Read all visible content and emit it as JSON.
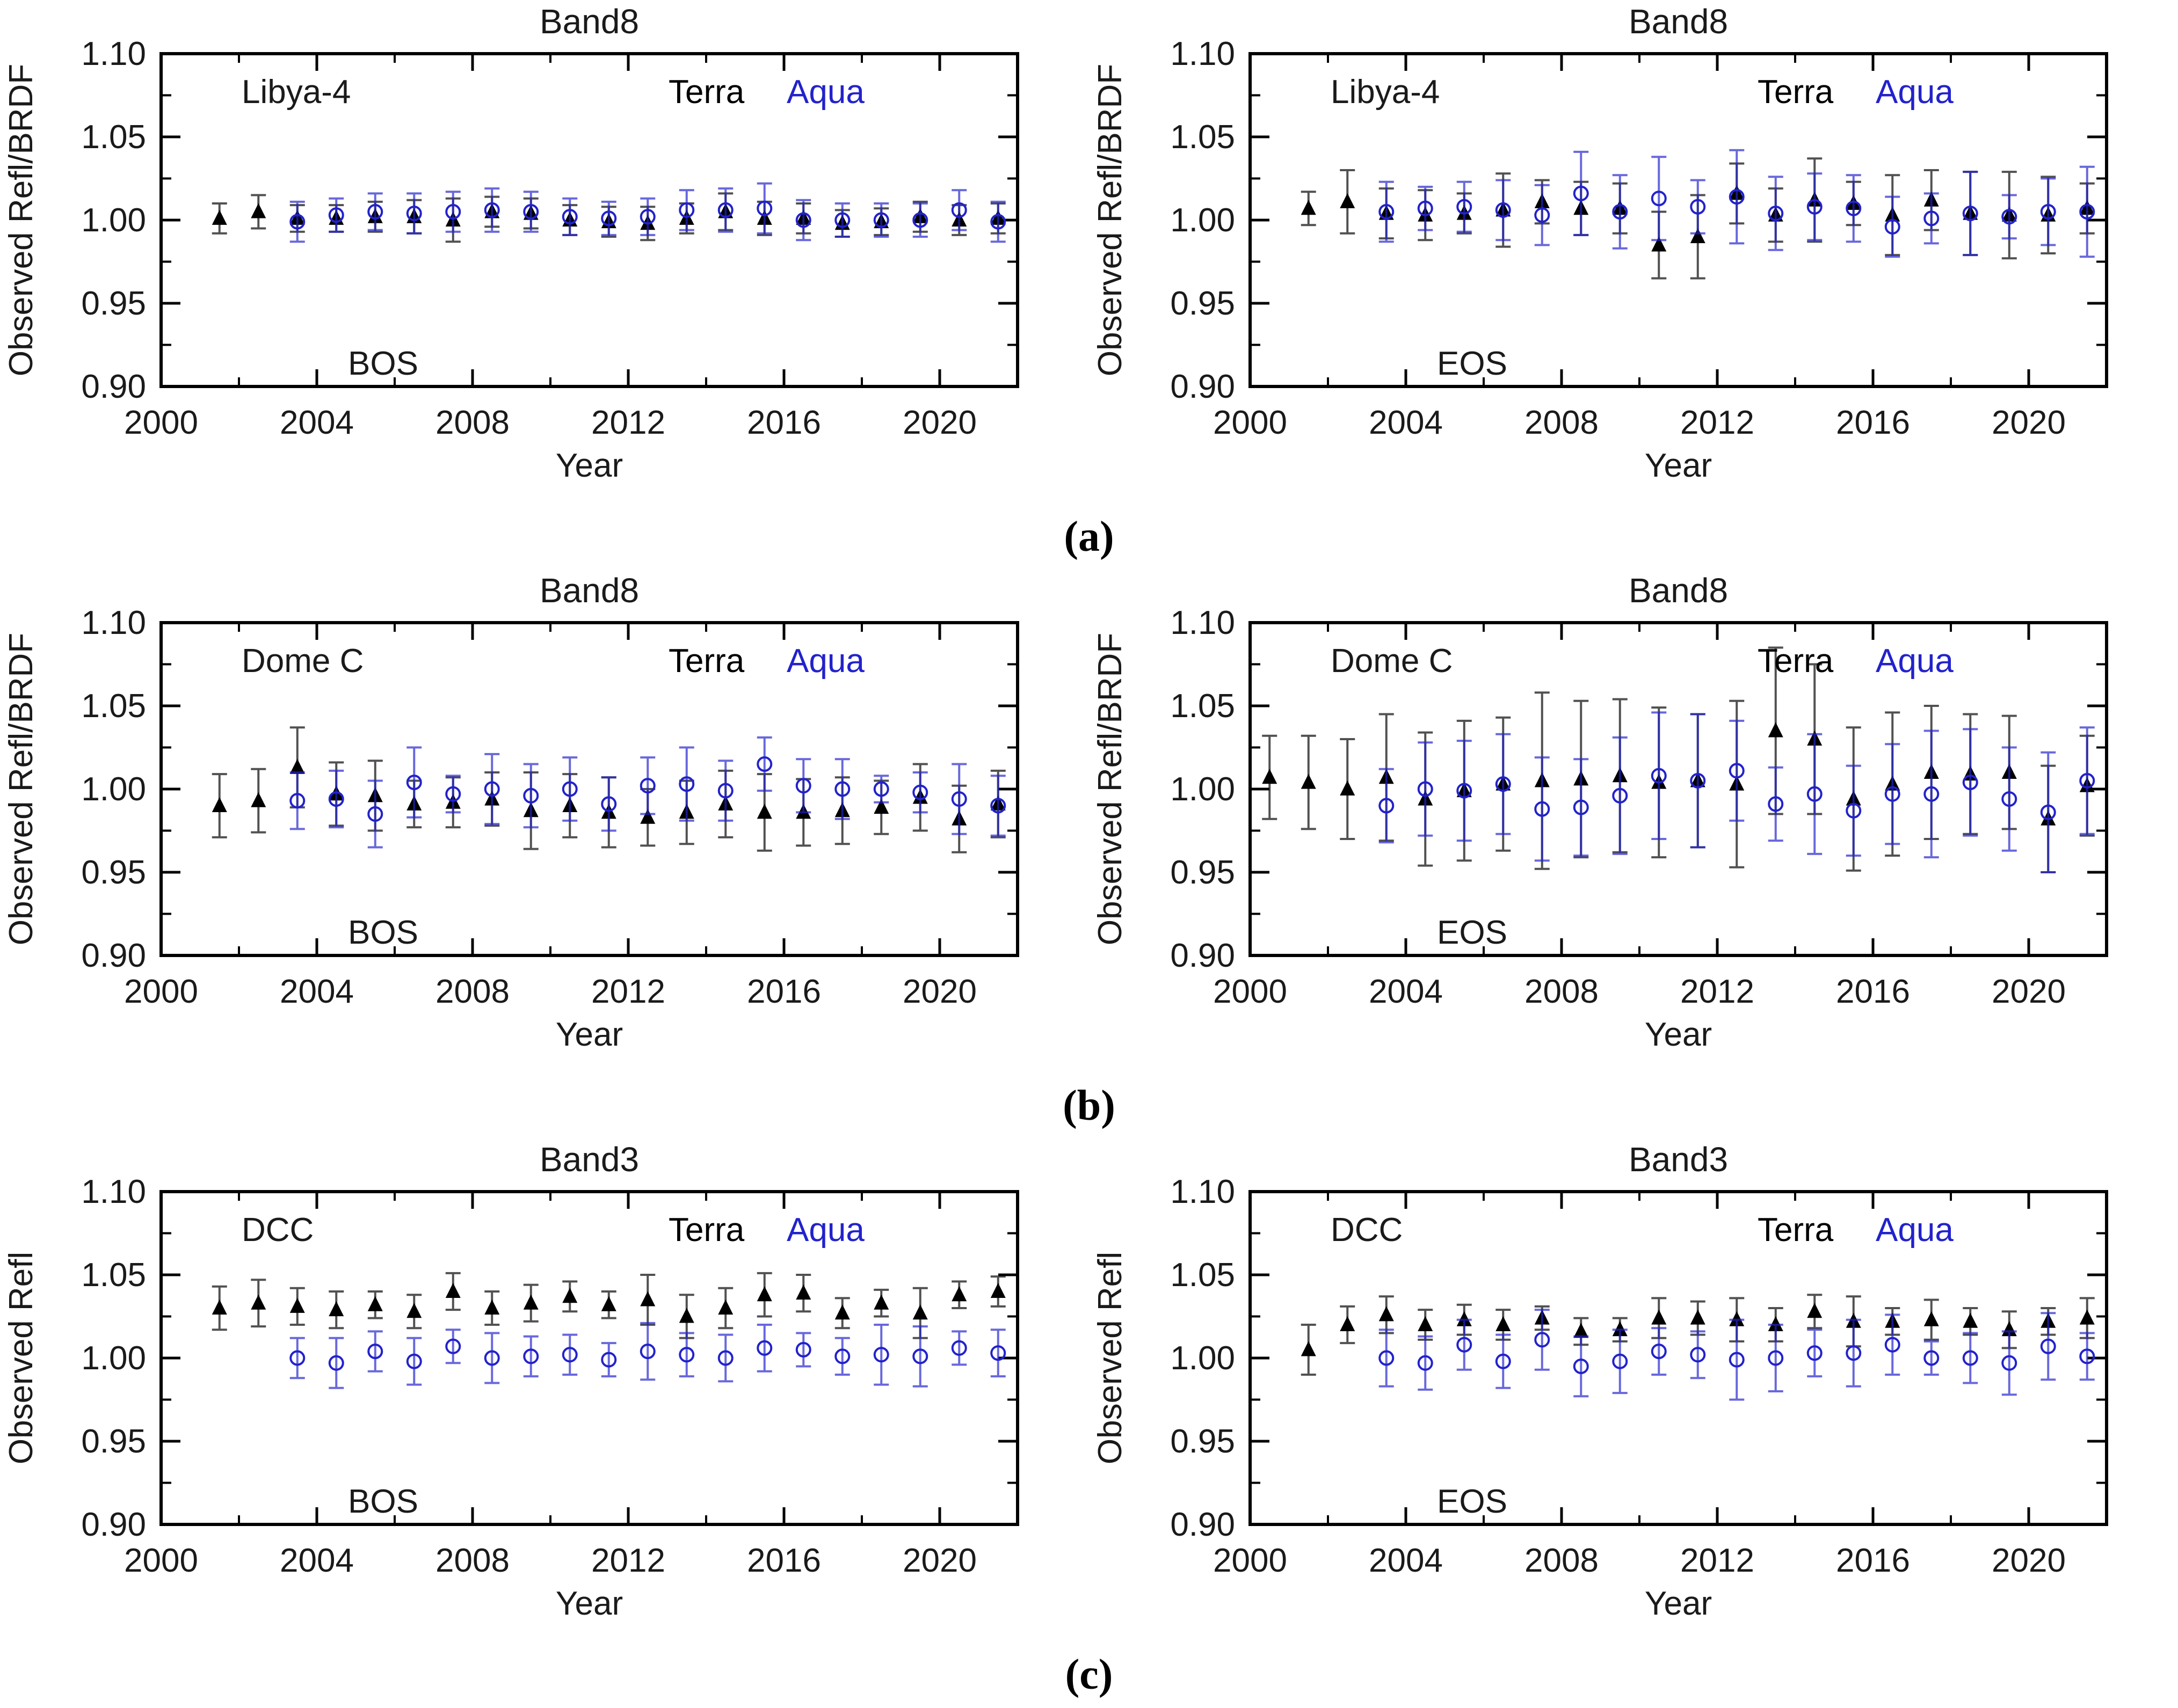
{
  "figure": {
    "background": "#ffffff",
    "letters": [
      "(a)",
      "(b)",
      "(c)"
    ],
    "colors": {
      "terra": "#000000",
      "aqua": "#2222cc",
      "frame": "#000000"
    },
    "legend": {
      "terra": "Terra",
      "aqua": "Aqua"
    },
    "axes": {
      "xlabel": "Year",
      "xlim": [
        2000,
        2022
      ],
      "xticks": [
        2000,
        2004,
        2008,
        2012,
        2016,
        2020
      ],
      "x_minor_step": 2,
      "ylim": [
        0.9,
        1.1
      ],
      "yticks": [
        0.9,
        0.95,
        1.0,
        1.05,
        1.1
      ],
      "y_minor_step": 0.025
    }
  },
  "chart_data": [
    {
      "type": "scatter",
      "title": "Band8",
      "site": "Libya-4",
      "mode": "BOS",
      "ylabel": "Observed Refl/BRDF",
      "xlabel": "Year",
      "series": [
        {
          "name": "Terra",
          "marker": "filled-triangle",
          "color": "#000000",
          "x": [
            2001.5,
            2002.5,
            2003.5,
            2004.5,
            2005.5,
            2006.5,
            2007.5,
            2008.5,
            2009.5,
            2010.5,
            2011.5,
            2012.5,
            2013.5,
            2014.5,
            2015.5,
            2016.5,
            2017.5,
            2018.5,
            2019.5,
            2020.5,
            2021.5
          ],
          "y": [
            1.001,
            1.005,
            1.001,
            1.001,
            1.002,
            1.002,
            1.0,
            1.005,
            1.004,
            1.0,
            0.999,
            0.998,
            1.001,
            1.005,
            1.001,
            1.001,
            0.998,
            0.999,
            1.002,
            1.0,
            1.001
          ],
          "yerr": [
            0.009,
            0.01,
            0.008,
            0.008,
            0.009,
            0.01,
            0.013,
            0.009,
            0.009,
            0.009,
            0.009,
            0.01,
            0.009,
            0.011,
            0.01,
            0.009,
            0.008,
            0.008,
            0.009,
            0.009,
            0.009
          ]
        },
        {
          "name": "Aqua",
          "marker": "open-circle",
          "color": "#2222cc",
          "x": [
            2003.5,
            2004.5,
            2005.5,
            2006.5,
            2007.5,
            2008.5,
            2009.5,
            2010.5,
            2011.5,
            2012.5,
            2013.5,
            2014.5,
            2015.5,
            2016.5,
            2017.5,
            2018.5,
            2019.5,
            2020.5,
            2021.5
          ],
          "y": [
            0.999,
            1.003,
            1.005,
            1.004,
            1.005,
            1.006,
            1.005,
            1.002,
            1.001,
            1.002,
            1.006,
            1.006,
            1.007,
            1.0,
            1.0,
            1.0,
            1.0,
            1.006,
            0.999
          ],
          "yerr": [
            0.012,
            0.01,
            0.011,
            0.012,
            0.012,
            0.013,
            0.012,
            0.011,
            0.01,
            0.011,
            0.012,
            0.013,
            0.015,
            0.012,
            0.01,
            0.01,
            0.01,
            0.012,
            0.012
          ]
        }
      ]
    },
    {
      "type": "scatter",
      "title": "Band8",
      "site": "Libya-4",
      "mode": "EOS",
      "ylabel": "Observed Refl/BRDF",
      "xlabel": "Year",
      "series": [
        {
          "name": "Terra",
          "marker": "filled-triangle",
          "color": "#000000",
          "x": [
            2001.5,
            2002.5,
            2003.5,
            2004.5,
            2005.5,
            2006.5,
            2007.5,
            2008.5,
            2009.5,
            2010.5,
            2011.5,
            2012.5,
            2013.5,
            2014.5,
            2015.5,
            2016.5,
            2017.5,
            2018.5,
            2019.5,
            2020.5,
            2021.5
          ],
          "y": [
            1.007,
            1.011,
            1.004,
            1.003,
            1.004,
            1.006,
            1.011,
            1.007,
            1.007,
            0.985,
            0.99,
            1.016,
            1.003,
            1.012,
            1.01,
            1.003,
            1.012,
            1.004,
            1.003,
            1.003,
            1.007
          ],
          "yerr": [
            0.01,
            0.019,
            0.015,
            0.015,
            0.012,
            0.022,
            0.013,
            0.016,
            0.015,
            0.02,
            0.025,
            0.018,
            0.016,
            0.025,
            0.013,
            0.024,
            0.018,
            0.025,
            0.026,
            0.023,
            0.015
          ]
        },
        {
          "name": "Aqua",
          "marker": "open-circle",
          "color": "#2222cc",
          "x": [
            2003.5,
            2004.5,
            2005.5,
            2006.5,
            2007.5,
            2008.5,
            2009.5,
            2010.5,
            2011.5,
            2012.5,
            2013.5,
            2014.5,
            2015.5,
            2016.5,
            2017.5,
            2018.5,
            2019.5,
            2020.5,
            2021.5
          ],
          "y": [
            1.005,
            1.007,
            1.008,
            1.006,
            1.003,
            1.016,
            1.005,
            1.013,
            1.008,
            1.014,
            1.004,
            1.008,
            1.007,
            0.996,
            1.001,
            1.004,
            1.002,
            1.005,
            1.005
          ],
          "yerr": [
            0.018,
            0.013,
            0.015,
            0.018,
            0.018,
            0.025,
            0.022,
            0.025,
            0.016,
            0.028,
            0.022,
            0.02,
            0.02,
            0.018,
            0.015,
            0.025,
            0.013,
            0.02,
            0.027
          ]
        }
      ]
    },
    {
      "type": "scatter",
      "title": "Band8",
      "site": "Dome C",
      "mode": "BOS",
      "ylabel": "Observed Refl/BRDF",
      "xlabel": "Year",
      "series": [
        {
          "name": "Terra",
          "marker": "filled-triangle",
          "color": "#000000",
          "x": [
            2001.5,
            2002.5,
            2003.5,
            2004.5,
            2005.5,
            2006.5,
            2007.5,
            2008.5,
            2009.5,
            2010.5,
            2011.5,
            2012.5,
            2013.5,
            2014.5,
            2015.5,
            2016.5,
            2017.5,
            2018.5,
            2019.5,
            2020.5,
            2021.5
          ],
          "y": [
            0.99,
            0.993,
            1.013,
            0.997,
            0.996,
            0.991,
            0.992,
            0.994,
            0.987,
            0.99,
            0.986,
            0.983,
            0.986,
            0.991,
            0.986,
            0.986,
            0.987,
            0.989,
            0.995,
            0.982,
            0.991
          ],
          "yerr": [
            0.019,
            0.019,
            0.024,
            0.019,
            0.021,
            0.014,
            0.015,
            0.016,
            0.023,
            0.019,
            0.021,
            0.017,
            0.019,
            0.02,
            0.023,
            0.02,
            0.02,
            0.016,
            0.02,
            0.02,
            0.02
          ]
        },
        {
          "name": "Aqua",
          "marker": "open-circle",
          "color": "#2222cc",
          "x": [
            2003.5,
            2004.5,
            2005.5,
            2006.5,
            2007.5,
            2008.5,
            2009.5,
            2010.5,
            2011.5,
            2012.5,
            2013.5,
            2014.5,
            2015.5,
            2016.5,
            2017.5,
            2018.5,
            2019.5,
            2020.5,
            2021.5
          ],
          "y": [
            0.993,
            0.994,
            0.985,
            1.004,
            0.997,
            1.0,
            0.996,
            1.0,
            0.991,
            1.002,
            1.003,
            0.999,
            1.015,
            1.002,
            1.0,
            1.0,
            0.998,
            0.994,
            0.99
          ],
          "yerr": [
            0.017,
            0.017,
            0.02,
            0.021,
            0.011,
            0.021,
            0.019,
            0.019,
            0.016,
            0.017,
            0.022,
            0.018,
            0.016,
            0.016,
            0.018,
            0.008,
            0.012,
            0.021,
            0.018
          ]
        }
      ]
    },
    {
      "type": "scatter",
      "title": "Band8",
      "site": "Dome C",
      "mode": "EOS",
      "ylabel": "Observed Refl/BRDF",
      "xlabel": "Year",
      "series": [
        {
          "name": "Terra",
          "marker": "filled-triangle",
          "color": "#000000",
          "x": [
            2000.5,
            2001.5,
            2002.5,
            2003.5,
            2004.5,
            2005.5,
            2006.5,
            2007.5,
            2008.5,
            2009.5,
            2010.5,
            2011.5,
            2012.5,
            2013.5,
            2014.5,
            2015.5,
            2016.5,
            2017.5,
            2018.5,
            2019.5,
            2020.5,
            2021.5
          ],
          "y": [
            1.007,
            1.004,
            1.0,
            1.007,
            0.994,
            0.999,
            1.003,
            1.005,
            1.006,
            1.008,
            1.004,
            1.005,
            1.003,
            1.035,
            1.03,
            0.994,
            1.003,
            1.01,
            1.009,
            1.01,
            0.982,
            1.002
          ],
          "yerr": [
            0.025,
            0.028,
            0.03,
            0.038,
            0.04,
            0.042,
            0.04,
            0.053,
            0.047,
            0.046,
            0.045,
            0.04,
            0.05,
            0.05,
            0.045,
            0.043,
            0.043,
            0.04,
            0.036,
            0.034,
            0.032,
            0.03
          ]
        },
        {
          "name": "Aqua",
          "marker": "open-circle",
          "color": "#2222cc",
          "x": [
            2003.5,
            2004.5,
            2005.5,
            2006.5,
            2007.5,
            2008.5,
            2009.5,
            2010.5,
            2011.5,
            2012.5,
            2013.5,
            2014.5,
            2015.5,
            2016.5,
            2017.5,
            2018.5,
            2019.5,
            2020.5,
            2021.5
          ],
          "y": [
            0.99,
            1.0,
            0.999,
            1.003,
            0.988,
            0.989,
            0.996,
            1.008,
            1.005,
            1.011,
            0.991,
            0.997,
            0.987,
            0.997,
            0.997,
            1.004,
            0.994,
            0.986,
            1.005
          ],
          "yerr": [
            0.022,
            0.028,
            0.03,
            0.03,
            0.031,
            0.029,
            0.035,
            0.038,
            0.04,
            0.03,
            0.022,
            0.036,
            0.027,
            0.03,
            0.038,
            0.032,
            0.031,
            0.036,
            0.032
          ]
        }
      ]
    },
    {
      "type": "scatter",
      "title": "Band3",
      "site": "DCC",
      "mode": "BOS",
      "ylabel": "Observed Refl",
      "xlabel": "Year",
      "series": [
        {
          "name": "Terra",
          "marker": "filled-triangle",
          "color": "#000000",
          "x": [
            2001.5,
            2002.5,
            2003.5,
            2004.5,
            2005.5,
            2006.5,
            2007.5,
            2008.5,
            2009.5,
            2010.5,
            2011.5,
            2012.5,
            2013.5,
            2014.5,
            2015.5,
            2016.5,
            2017.5,
            2018.5,
            2019.5,
            2020.5,
            2021.5
          ],
          "y": [
            1.03,
            1.033,
            1.031,
            1.029,
            1.032,
            1.028,
            1.04,
            1.03,
            1.033,
            1.037,
            1.032,
            1.035,
            1.025,
            1.03,
            1.038,
            1.039,
            1.027,
            1.033,
            1.027,
            1.038,
            1.04
          ],
          "yerr": [
            0.013,
            0.014,
            0.011,
            0.011,
            0.008,
            0.01,
            0.011,
            0.01,
            0.011,
            0.009,
            0.008,
            0.015,
            0.013,
            0.012,
            0.013,
            0.011,
            0.009,
            0.008,
            0.015,
            0.008,
            0.009
          ]
        },
        {
          "name": "Aqua",
          "marker": "open-circle",
          "color": "#2222cc",
          "x": [
            2003.5,
            2004.5,
            2005.5,
            2006.5,
            2007.5,
            2008.5,
            2009.5,
            2010.5,
            2011.5,
            2012.5,
            2013.5,
            2014.5,
            2015.5,
            2016.5,
            2017.5,
            2018.5,
            2019.5,
            2020.5,
            2021.5
          ],
          "y": [
            1.0,
            0.997,
            1.004,
            0.998,
            1.007,
            1.0,
            1.001,
            1.002,
            0.999,
            1.004,
            1.002,
            1.0,
            1.006,
            1.005,
            1.001,
            1.002,
            1.001,
            1.006,
            1.003
          ],
          "yerr": [
            0.012,
            0.015,
            0.012,
            0.014,
            0.01,
            0.015,
            0.012,
            0.012,
            0.01,
            0.017,
            0.013,
            0.014,
            0.014,
            0.01,
            0.011,
            0.018,
            0.018,
            0.01,
            0.014
          ]
        }
      ]
    },
    {
      "type": "scatter",
      "title": "Band3",
      "site": "DCC",
      "mode": "EOS",
      "ylabel": "Observed Refl",
      "xlabel": "Year",
      "series": [
        {
          "name": "Terra",
          "marker": "filled-triangle",
          "color": "#000000",
          "x": [
            2001.5,
            2002.5,
            2003.5,
            2004.5,
            2005.5,
            2006.5,
            2007.5,
            2008.5,
            2009.5,
            2010.5,
            2011.5,
            2012.5,
            2013.5,
            2014.5,
            2015.5,
            2016.5,
            2017.5,
            2018.5,
            2019.5,
            2020.5,
            2021.5
          ],
          "y": [
            1.005,
            1.02,
            1.026,
            1.02,
            1.023,
            1.02,
            1.024,
            1.016,
            1.017,
            1.024,
            1.024,
            1.023,
            1.02,
            1.028,
            1.022,
            1.022,
            1.023,
            1.022,
            1.017,
            1.022,
            1.024
          ],
          "yerr": [
            0.015,
            0.011,
            0.011,
            0.009,
            0.009,
            0.009,
            0.007,
            0.008,
            0.007,
            0.012,
            0.01,
            0.013,
            0.01,
            0.01,
            0.015,
            0.008,
            0.012,
            0.008,
            0.011,
            0.008,
            0.012
          ]
        },
        {
          "name": "Aqua",
          "marker": "open-circle",
          "color": "#2222cc",
          "x": [
            2003.5,
            2004.5,
            2005.5,
            2006.5,
            2007.5,
            2008.5,
            2009.5,
            2010.5,
            2011.5,
            2012.5,
            2013.5,
            2014.5,
            2015.5,
            2016.5,
            2017.5,
            2018.5,
            2019.5,
            2020.5,
            2021.5
          ],
          "y": [
            1.0,
            0.997,
            1.008,
            0.998,
            1.011,
            0.995,
            0.998,
            1.004,
            1.002,
            0.999,
            1.0,
            1.003,
            1.003,
            1.008,
            1.0,
            1.0,
            0.997,
            1.007,
            1.001
          ],
          "yerr": [
            0.017,
            0.016,
            0.015,
            0.016,
            0.018,
            0.018,
            0.019,
            0.014,
            0.014,
            0.024,
            0.02,
            0.014,
            0.02,
            0.018,
            0.01,
            0.015,
            0.019,
            0.02,
            0.014
          ]
        }
      ]
    }
  ]
}
